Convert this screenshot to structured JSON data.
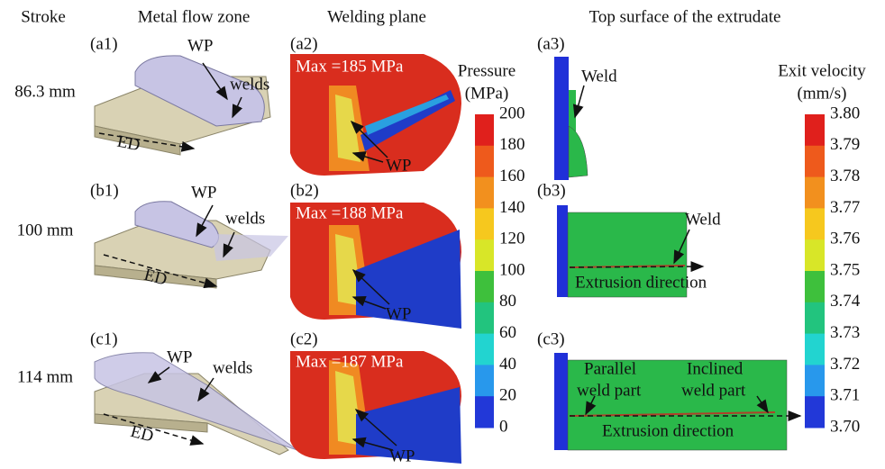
{
  "headers": [
    "Stroke",
    "Metal flow zone",
    "Welding plane",
    "Top surface of the extrudate"
  ],
  "rows": [
    {
      "stroke": "86.3 mm",
      "panels": [
        "(a1)",
        "(a2)",
        "(a3)"
      ],
      "max": "Max =185 MPa"
    },
    {
      "stroke": "100 mm",
      "panels": [
        "(b1)",
        "(b2)",
        "(b3)"
      ],
      "max": "Max =188 MPa"
    },
    {
      "stroke": "114 mm",
      "panels": [
        "(c1)",
        "(c2)",
        "(c3)"
      ],
      "max": "Max =187 MPa"
    }
  ],
  "labels": {
    "wp": "WP",
    "welds": "welds",
    "ed": "ED",
    "weld": "Weld",
    "extrusion_direction": "Extrusion direction",
    "parallel": [
      "Parallel",
      "weld part"
    ],
    "inclined": [
      "Inclined",
      "weld part"
    ]
  },
  "pressure_bar": {
    "title": [
      "Pressure",
      "(MPa)"
    ],
    "ticks": [
      "200",
      "180",
      "160",
      "140",
      "120",
      "100",
      "80",
      "60",
      "40",
      "20",
      "0"
    ]
  },
  "velocity_bar": {
    "title": [
      "Exit velocity",
      "(mm/s)"
    ],
    "ticks": [
      "3.80",
      "3.79",
      "3.78",
      "3.77",
      "3.76",
      "3.75",
      "3.74",
      "3.73",
      "3.72",
      "3.71",
      "3.70"
    ]
  }
}
